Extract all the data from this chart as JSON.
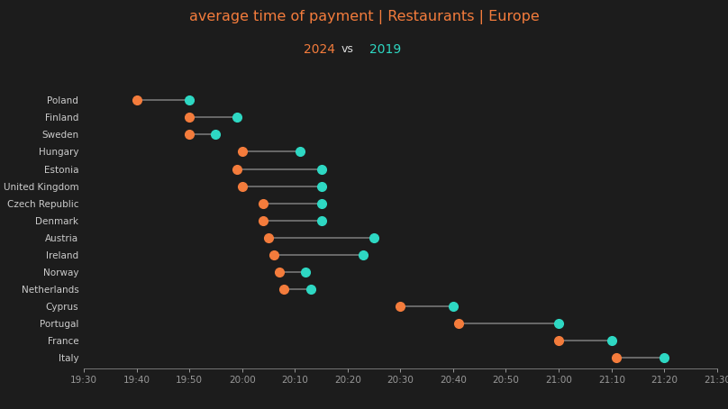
{
  "title_line1": "average time of payment | Restaurants | Europe",
  "title_line2": "2024 vs 2019",
  "background_color": "#1c1c1c",
  "color_2024": "#f47c3c",
  "color_2019": "#2ed8c3",
  "connector_color": "#777777",
  "title_color": "#f47c3c",
  "subtitle_2024_color": "#f47c3c",
  "subtitle_vs_color": "#dddddd",
  "subtitle_2019_color": "#2ed8c3",
  "label_color": "#cccccc",
  "tick_color": "#999999",
  "countries": [
    "Poland",
    "Finland",
    "Sweden",
    "Hungary",
    "Estonia",
    "United Kingdom",
    "Czech Republic",
    "Denmark",
    "Austria",
    "Ireland",
    "Norway",
    "Netherlands",
    "Cyprus",
    "Portugal",
    "France",
    "Italy"
  ],
  "val_2024": [
    19.667,
    19.833,
    19.833,
    20.0,
    19.983,
    20.0,
    20.067,
    20.067,
    20.083,
    20.1,
    20.117,
    20.133,
    20.5,
    20.683,
    21.0,
    21.183
  ],
  "val_2019": [
    19.833,
    19.983,
    19.917,
    20.183,
    20.25,
    20.25,
    20.25,
    20.25,
    20.417,
    20.383,
    20.2,
    20.217,
    20.667,
    21.0,
    21.167,
    21.333
  ],
  "xlim": [
    19.5,
    21.5
  ],
  "xticks": [
    19.5,
    19.667,
    19.833,
    20.0,
    20.167,
    20.333,
    20.5,
    20.667,
    20.833,
    21.0,
    21.167,
    21.333,
    21.5
  ],
  "xtick_labels": [
    "19:30",
    "19:40",
    "19:50",
    "20:00",
    "20:10",
    "20:20",
    "20:30",
    "20:40",
    "20:50",
    "21:00",
    "21:10",
    "21:20",
    "21:30"
  ],
  "markersize": 7,
  "linewidth": 1.2,
  "figsize": [
    8.08,
    4.54
  ],
  "dpi": 100
}
